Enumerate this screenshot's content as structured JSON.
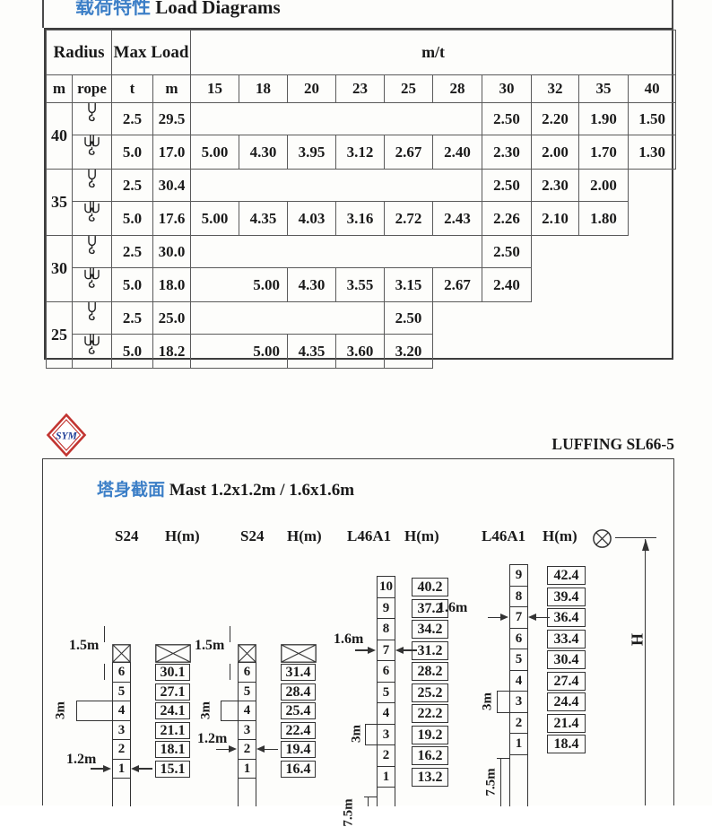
{
  "page": {
    "title_zh": "载荷特性",
    "title_en": "Load Diagrams",
    "brand": "LUFFING SL66-5",
    "logo_text": "SYM"
  },
  "colors": {
    "accent_blue": "#3c7fc7",
    "logo_red": "#c23531",
    "logo_blue": "#1e3d96",
    "line": "#4a4a4a"
  },
  "icons": {
    "rope_single": "single-hook",
    "rope_double": "double-hook",
    "dim_origin": "circle-cross"
  },
  "load_table": {
    "header": {
      "radius": "Radius",
      "max_load": "Max Load",
      "mt": "m/t"
    },
    "subheader": {
      "m": "m",
      "rope": "rope",
      "t": "t",
      "m2": "m"
    },
    "radius_cols": [
      "15",
      "18",
      "20",
      "23",
      "25",
      "28",
      "30",
      "32",
      "35",
      "40"
    ],
    "groups": [
      {
        "radius": "40",
        "rows": [
          {
            "hook": "single",
            "t": "2.5",
            "m": "29.5",
            "cells": [
              {
                "kind": "blank",
                "span": 6
              },
              {
                "v": "2.50"
              },
              {
                "v": "2.20"
              },
              {
                "v": "1.90"
              },
              {
                "v": "1.50"
              }
            ]
          },
          {
            "hook": "double",
            "t": "5.0",
            "m": "17.0",
            "cells": [
              {
                "v": "5.00"
              },
              {
                "v": "4.30"
              },
              {
                "v": "3.95"
              },
              {
                "v": "3.12"
              },
              {
                "v": "2.67"
              },
              {
                "v": "2.40"
              },
              {
                "v": "2.30"
              },
              {
                "v": "2.00"
              },
              {
                "v": "1.70"
              },
              {
                "v": "1.30"
              }
            ]
          }
        ]
      },
      {
        "radius": "35",
        "rows": [
          {
            "hook": "single",
            "t": "2.5",
            "m": "30.4",
            "cells": [
              {
                "kind": "blank",
                "span": 6
              },
              {
                "v": "2.50"
              },
              {
                "v": "2.30"
              },
              {
                "v": "2.00"
              },
              {
                "kind": "void",
                "span": 1
              }
            ]
          },
          {
            "hook": "double",
            "t": "5.0",
            "m": "17.6",
            "cells": [
              {
                "v": "5.00"
              },
              {
                "v": "4.35"
              },
              {
                "v": "4.03"
              },
              {
                "v": "3.16"
              },
              {
                "v": "2.72"
              },
              {
                "v": "2.43"
              },
              {
                "v": "2.26"
              },
              {
                "v": "2.10"
              },
              {
                "v": "1.80"
              },
              {
                "kind": "void",
                "span": 1
              }
            ]
          }
        ]
      },
      {
        "radius": "30",
        "rows": [
          {
            "hook": "single",
            "t": "2.5",
            "m": "30.0",
            "cells": [
              {
                "kind": "blank",
                "span": 6
              },
              {
                "v": "2.50"
              },
              {
                "kind": "void",
                "span": 3
              }
            ]
          },
          {
            "hook": "double",
            "t": "5.0",
            "m": "18.0",
            "cells": [
              {
                "v": "5.00",
                "kind": "valr",
                "span": 2
              },
              {
                "v": "4.30"
              },
              {
                "v": "3.55"
              },
              {
                "v": "3.15"
              },
              {
                "v": "2.67"
              },
              {
                "v": "2.40"
              },
              {
                "kind": "void",
                "span": 3
              }
            ]
          }
        ]
      },
      {
        "radius": "25",
        "rows": [
          {
            "hook": "single",
            "t": "2.5",
            "m": "25.0",
            "cells": [
              {
                "kind": "blank",
                "span": 4
              },
              {
                "v": "2.50"
              },
              {
                "kind": "void",
                "span": 5
              }
            ]
          },
          {
            "hook": "double",
            "t": "5.0",
            "m": "18.2",
            "cells": [
              {
                "v": "5.00",
                "kind": "valr",
                "span": 2
              },
              {
                "v": "4.35"
              },
              {
                "v": "3.60"
              },
              {
                "v": "3.20"
              },
              {
                "kind": "void",
                "span": 5
              }
            ]
          }
        ]
      }
    ]
  },
  "mast": {
    "title_zh": "塔身截面",
    "title_en": "Mast  1.2x1.2m / 1.6x1.6m",
    "col_headers": [
      "S24",
      "H(m)",
      "S24",
      "H(m)",
      "L46A1",
      "H(m)",
      "L46A1",
      "H(m)"
    ],
    "h_dim_label": "H",
    "groups": [
      {
        "type": "S24",
        "tip_label": "1.5m",
        "seg_label": "3m",
        "width_label": "1.2m",
        "base_label": "",
        "numbers": [
          "6",
          "5",
          "4",
          "3",
          "2",
          "1"
        ],
        "heights": [
          "30.1",
          "27.1",
          "24.1",
          "21.1",
          "18.1",
          "15.1"
        ]
      },
      {
        "type": "S24",
        "tip_label": "1.5m",
        "seg_label": "3m",
        "width_label": "1.2m",
        "base_label": "",
        "numbers": [
          "6",
          "5",
          "4",
          "3",
          "2",
          "1"
        ],
        "heights": [
          "31.4",
          "28.4",
          "25.4",
          "22.4",
          "19.4",
          "16.4"
        ]
      },
      {
        "type": "L46A1",
        "tip_label": "",
        "seg_label": "3m",
        "width_label": "1.6m",
        "base_label": "7.5m",
        "numbers": [
          "10",
          "9",
          "8",
          "7",
          "6",
          "5",
          "4",
          "3",
          "2",
          "1"
        ],
        "heights": [
          "40.2",
          "37.2",
          "34.2",
          "31.2",
          "28.2",
          "25.2",
          "22.2",
          "19.2",
          "16.2",
          "13.2"
        ]
      },
      {
        "type": "L46A1",
        "tip_label": "",
        "seg_label": "3m",
        "width_label": "1.6m",
        "base_label": "7.5m",
        "numbers": [
          "9",
          "8",
          "7",
          "6",
          "5",
          "4",
          "3",
          "2",
          "1"
        ],
        "heights": [
          "42.4",
          "39.4",
          "36.4",
          "33.4",
          "30.4",
          "27.4",
          "24.4",
          "21.4",
          "18.4"
        ]
      }
    ]
  }
}
